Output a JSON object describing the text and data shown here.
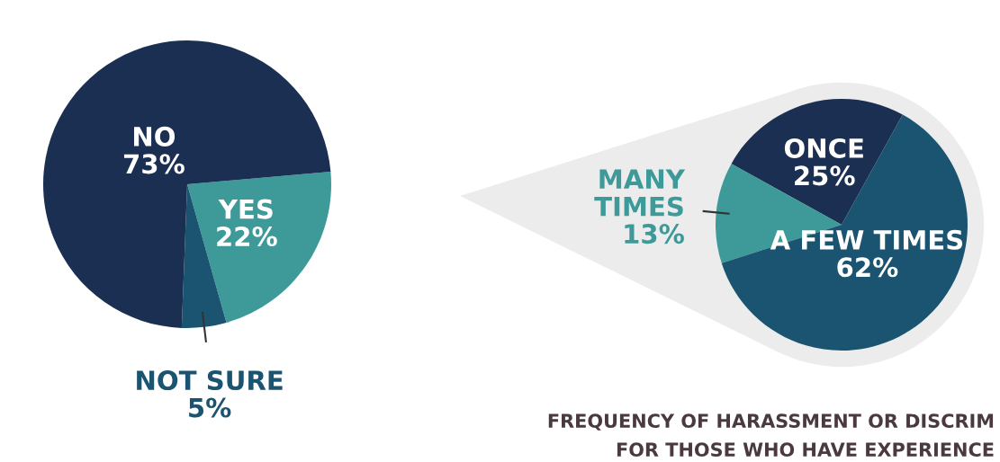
{
  "chart_data": [
    {
      "type": "pie",
      "categories": [
        "YES",
        "NOT SURE",
        "NO"
      ],
      "values": [
        22,
        5,
        73
      ],
      "value_labels": [
        "22%",
        "5%",
        "73%"
      ],
      "colors": [
        "#3d9a98",
        "#1b5470",
        "#1a2f52"
      ]
    },
    {
      "type": "pie",
      "categories": [
        "ONCE",
        "MANY\nTIMES",
        "A FEW TIMES"
      ],
      "values": [
        25,
        13,
        62
      ],
      "value_labels": [
        "25%",
        "13%",
        "62%"
      ],
      "colors": [
        "#1a2f52",
        "#3d9a98",
        "#1b5470"
      ],
      "annotations": [
        "FREQUENCY OF HARASSMENT OR DISCRIM",
        "FOR THOSE WHO HAVE EXPERIENCE"
      ]
    }
  ]
}
